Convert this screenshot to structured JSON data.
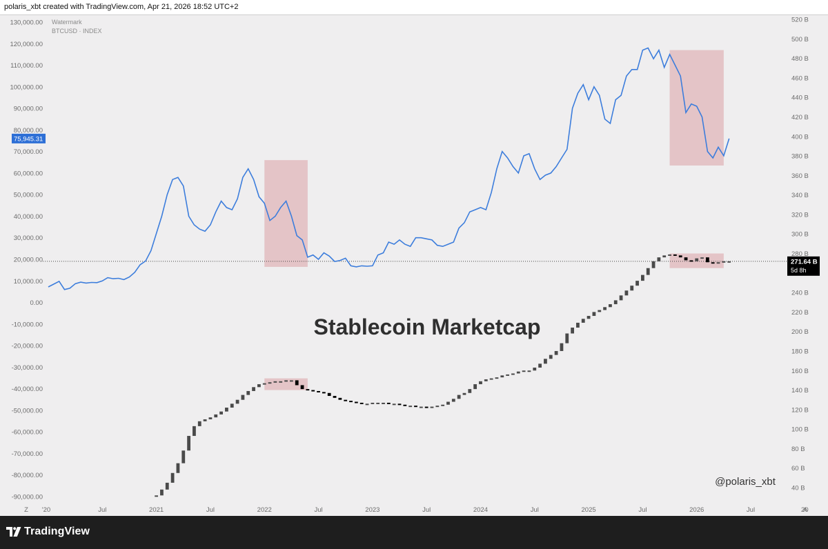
{
  "header": {
    "text": "polaris_xbt created with TradingView.com, Apr 21, 2026 18:52 UTC+2"
  },
  "footer": {
    "brand": "TradingView",
    "logo_icon": "tradingview-logo-icon"
  },
  "colors": {
    "btc_line": "#3c7ddc",
    "highlight": "#d99aa0",
    "stable_up": "#4a4a4a",
    "stable_down": "#000000",
    "axis_text": "#6b6b6b",
    "badge_btc": "#2d6fd6",
    "badge_stable": "#000000"
  },
  "chart_data": {
    "type": "line",
    "symbol_legend": [
      "Watermark",
      "BTCUSD · INDEX"
    ],
    "title": "Stablecoin Marketcap",
    "watermark": "@polaris_xbt",
    "x_ticks": [
      "'20",
      "Jul",
      "2021",
      "Jul",
      "2022",
      "Jul",
      "2023",
      "Jul",
      "2024",
      "Jul",
      "2025",
      "Jul",
      "2026",
      "Jul",
      "20"
    ],
    "corner_labels": {
      "left": "Z",
      "right": "A"
    },
    "y_left": {
      "label": "BTCUSD",
      "ticks": [
        "130,000.00",
        "120,000.00",
        "110,000.00",
        "100,000.00",
        "90,000.00",
        "80,000.00",
        "70,000.00",
        "60,000.00",
        "50,000.00",
        "40,000.00",
        "30,000.00",
        "20,000.00",
        "10,000.00",
        "0.00",
        "-10,000.00",
        "-20,000.00",
        "-30,000.00",
        "-40,000.00",
        "-50,000.00",
        "-60,000.00",
        "-70,000.00",
        "-80,000.00",
        "-90,000.00"
      ],
      "range": [
        -90000,
        130000
      ]
    },
    "y_right": {
      "label": "Stablecoin Marketcap",
      "ticks": [
        "520 B",
        "500 B",
        "480 B",
        "460 B",
        "440 B",
        "420 B",
        "400 B",
        "380 B",
        "360 B",
        "340 B",
        "320 B",
        "300 B",
        "280 B",
        "260 B",
        "240 B",
        "220 B",
        "200 B",
        "180 B",
        "160 B",
        "140 B",
        "120 B",
        "100 B",
        "80 B",
        "60 B",
        "40 B"
      ],
      "range": [
        40,
        520
      ]
    },
    "last_price": {
      "btc": "75,945.31",
      "stable": "271.64 B",
      "stable_countdown": "5d 8h"
    },
    "series": [
      {
        "name": "BTCUSD",
        "axis": "left",
        "x": [
          2020.0,
          2020.05,
          2020.1,
          2020.15,
          2020.2,
          2020.25,
          2020.3,
          2020.35,
          2020.4,
          2020.45,
          2020.5,
          2020.55,
          2020.6,
          2020.65,
          2020.7,
          2020.75,
          2020.8,
          2020.85,
          2020.9,
          2020.95,
          2021.0,
          2021.05,
          2021.1,
          2021.15,
          2021.2,
          2021.25,
          2021.3,
          2021.35,
          2021.4,
          2021.45,
          2021.5,
          2021.55,
          2021.6,
          2021.65,
          2021.7,
          2021.75,
          2021.8,
          2021.85,
          2021.9,
          2021.95,
          2022.0,
          2022.05,
          2022.1,
          2022.15,
          2022.2,
          2022.25,
          2022.3,
          2022.35,
          2022.4,
          2022.45,
          2022.5,
          2022.55,
          2022.6,
          2022.65,
          2022.7,
          2022.75,
          2022.8,
          2022.85,
          2022.9,
          2022.95,
          2023.0,
          2023.05,
          2023.1,
          2023.15,
          2023.2,
          2023.25,
          2023.3,
          2023.35,
          2023.4,
          2023.45,
          2023.5,
          2023.55,
          2023.6,
          2023.65,
          2023.7,
          2023.75,
          2023.8,
          2023.85,
          2023.9,
          2023.95,
          2024.0,
          2024.05,
          2024.1,
          2024.15,
          2024.2,
          2024.25,
          2024.3,
          2024.35,
          2024.4,
          2024.45,
          2024.5,
          2024.55,
          2024.6,
          2024.65,
          2024.7,
          2024.75,
          2024.8,
          2024.85,
          2024.9,
          2024.95,
          2025.0,
          2025.05,
          2025.1,
          2025.15,
          2025.2,
          2025.25,
          2025.3,
          2025.35,
          2025.4,
          2025.45,
          2025.5,
          2025.55,
          2025.6,
          2025.65,
          2025.7,
          2025.75,
          2025.8,
          2025.85,
          2025.9,
          2025.95,
          2026.0,
          2026.05,
          2026.1,
          2026.15,
          2026.2,
          2026.25,
          2026.3
        ],
        "y": [
          7200,
          8500,
          9800,
          6000,
          6600,
          8700,
          9400,
          9000,
          9300,
          9200,
          10000,
          11500,
          11000,
          11200,
          10600,
          11800,
          14000,
          17500,
          19200,
          24000,
          32000,
          40000,
          50000,
          57000,
          58000,
          54000,
          40000,
          36000,
          34000,
          33000,
          36000,
          42000,
          47000,
          44000,
          43000,
          48000,
          58000,
          62000,
          57000,
          49000,
          46000,
          38000,
          40000,
          44000,
          47000,
          40000,
          31000,
          29000,
          21000,
          22000,
          20000,
          23000,
          21500,
          19000,
          19500,
          20500,
          17000,
          16500,
          17000,
          16800,
          17000,
          22000,
          23000,
          28000,
          27000,
          29000,
          27000,
          26000,
          30000,
          30000,
          29500,
          29000,
          26500,
          26000,
          27000,
          28000,
          34500,
          37000,
          42000,
          43000,
          44000,
          43000,
          51000,
          62000,
          70000,
          67000,
          63000,
          60000,
          68000,
          69000,
          62000,
          57000,
          59000,
          60000,
          63000,
          67000,
          71000,
          90000,
          97000,
          101000,
          94000,
          100000,
          96000,
          85000,
          83000,
          94000,
          96000,
          105000,
          108000,
          108000,
          117000,
          118000,
          113000,
          117000,
          109000,
          115000,
          110000,
          105000,
          88000,
          92000,
          91000,
          86000,
          70000,
          67000,
          72000,
          68000,
          76000
        ]
      },
      {
        "name": "Stablecoin Marketcap",
        "axis": "right",
        "x": [
          2021.0,
          2021.05,
          2021.1,
          2021.15,
          2021.2,
          2021.25,
          2021.3,
          2021.35,
          2021.4,
          2021.45,
          2021.5,
          2021.55,
          2021.6,
          2021.65,
          2021.7,
          2021.75,
          2021.8,
          2021.85,
          2021.9,
          2021.95,
          2022.0,
          2022.05,
          2022.1,
          2022.15,
          2022.2,
          2022.25,
          2022.3,
          2022.35,
          2022.4,
          2022.45,
          2022.5,
          2022.55,
          2022.6,
          2022.65,
          2022.7,
          2022.75,
          2022.8,
          2022.85,
          2022.9,
          2022.95,
          2023.0,
          2023.05,
          2023.1,
          2023.15,
          2023.2,
          2023.25,
          2023.3,
          2023.35,
          2023.4,
          2023.45,
          2023.5,
          2023.55,
          2023.6,
          2023.65,
          2023.7,
          2023.75,
          2023.8,
          2023.85,
          2023.9,
          2023.95,
          2024.0,
          2024.05,
          2024.1,
          2024.15,
          2024.2,
          2024.25,
          2024.3,
          2024.35,
          2024.4,
          2024.45,
          2024.5,
          2024.55,
          2024.6,
          2024.65,
          2024.7,
          2024.75,
          2024.8,
          2024.85,
          2024.9,
          2024.95,
          2025.0,
          2025.05,
          2025.1,
          2025.15,
          2025.2,
          2025.25,
          2025.3,
          2025.35,
          2025.4,
          2025.45,
          2025.5,
          2025.55,
          2025.6,
          2025.65,
          2025.7,
          2025.75,
          2025.8,
          2025.85,
          2025.9,
          2025.95,
          2026.0,
          2026.05,
          2026.1,
          2026.15,
          2026.2,
          2026.25,
          2026.3
        ],
        "y": [
          32,
          38,
          45,
          55,
          65,
          78,
          93,
          103,
          108,
          110,
          112,
          115,
          118,
          122,
          126,
          130,
          135,
          139,
          143,
          146,
          147,
          148,
          149,
          149,
          150,
          150,
          145,
          141,
          140,
          139,
          138,
          137,
          134,
          132,
          130,
          129,
          128,
          127,
          126,
          126,
          127,
          127,
          127,
          126,
          126,
          125,
          124,
          124,
          123,
          123,
          122,
          123,
          124,
          125,
          128,
          131,
          135,
          137,
          141,
          146,
          149,
          151,
          152,
          153,
          155,
          156,
          157,
          159,
          160,
          160,
          163,
          167,
          172,
          176,
          180,
          188,
          198,
          204,
          209,
          213,
          216,
          220,
          222,
          225,
          228,
          232,
          237,
          242,
          247,
          252,
          258,
          265,
          272,
          276,
          278,
          279,
          278,
          276,
          273,
          272,
          275,
          276,
          271,
          270,
          271,
          272,
          272
        ]
      }
    ],
    "highlights": [
      {
        "axis": "left",
        "x": [
          2022.0,
          2022.4
        ],
        "y": [
          16500,
          66000
        ]
      },
      {
        "axis": "left",
        "x": [
          2025.75,
          2026.25
        ],
        "y": [
          63500,
          117000
        ]
      },
      {
        "axis": "right",
        "x": [
          2022.0,
          2022.4
        ],
        "y": [
          140,
          152
        ]
      },
      {
        "axis": "right",
        "x": [
          2025.75,
          2026.25
        ],
        "y": [
          265,
          280
        ]
      }
    ]
  }
}
